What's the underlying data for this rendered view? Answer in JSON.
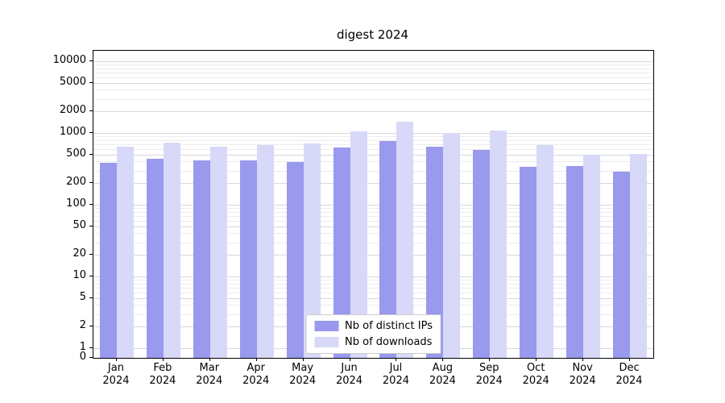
{
  "chart_data": {
    "type": "bar",
    "title": "digest 2024",
    "year": "2024",
    "categories": [
      "Jan",
      "Feb",
      "Mar",
      "Apr",
      "May",
      "Jun",
      "Jul",
      "Aug",
      "Sep",
      "Oct",
      "Nov",
      "Dec"
    ],
    "series": [
      {
        "name": "Nb of distinct IPs",
        "color": "#9999ee",
        "values": [
          380,
          440,
          410,
          420,
          395,
          620,
          770,
          640,
          575,
          340,
          345,
          290
        ]
      },
      {
        "name": "Nb of downloads",
        "color": "#d8d8f8",
        "values": [
          650,
          740,
          645,
          670,
          720,
          1060,
          1420,
          1010,
          1090,
          670,
          500,
          510
        ]
      }
    ],
    "yticks": [
      0,
      1,
      2,
      5,
      10,
      20,
      50,
      100,
      200,
      500,
      1000,
      2000,
      5000,
      10000
    ],
    "scale": "log",
    "ylim": [
      0,
      13000
    ],
    "xlabel": "",
    "ylabel": "",
    "grid": true,
    "legend_position": "lower center"
  },
  "colors": {
    "grid_major": "#d8d8d8",
    "grid_minor": "#ececec",
    "axis": "#000000",
    "legend_border": "#cccccc",
    "legend_bg": "#ffffff"
  }
}
